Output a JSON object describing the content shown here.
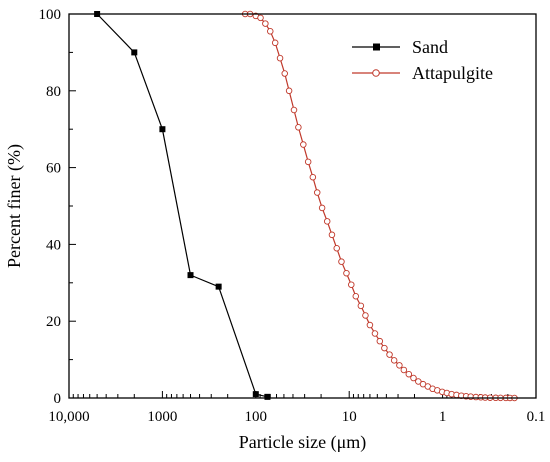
{
  "chart_data": {
    "type": "line",
    "xlabel": "Particle size (μm)",
    "ylabel": "Percent finer (%)",
    "x_scale": "log",
    "x_reversed": true,
    "xlim": [
      10000,
      0.1
    ],
    "ylim": [
      0,
      100
    ],
    "x_ticks": [
      {
        "value": 10000,
        "label": "10,000"
      },
      {
        "value": 1000,
        "label": "1000"
      },
      {
        "value": 100,
        "label": "100"
      },
      {
        "value": 10,
        "label": "10"
      },
      {
        "value": 1,
        "label": "1"
      },
      {
        "value": 0.1,
        "label": "0.1"
      }
    ],
    "y_ticks": [
      0,
      20,
      40,
      60,
      80,
      100
    ],
    "grid": false,
    "legend_position": "top-right",
    "series": [
      {
        "name": "Sand",
        "color": "#000000",
        "marker": "filled-square",
        "x": [
          5000,
          2000,
          1000,
          500,
          250,
          100,
          75
        ],
        "y": [
          100,
          90,
          70,
          32,
          29,
          1,
          0.3
        ]
      },
      {
        "name": "Attapulgite",
        "color": "#c0392b",
        "marker": "open-circle",
        "x": [
          130,
          115,
          100,
          89,
          79,
          70,
          62,
          55,
          49,
          44,
          39,
          35,
          31,
          27.5,
          24.5,
          22,
          19.5,
          17.2,
          15.3,
          13.6,
          12.1,
          10.7,
          9.5,
          8.5,
          7.5,
          6.7,
          6,
          5.3,
          4.7,
          4.2,
          3.7,
          3.3,
          2.9,
          2.6,
          2.3,
          2.05,
          1.82,
          1.62,
          1.44,
          1.28,
          1.14,
          1.01,
          0.9,
          0.8,
          0.71,
          0.63,
          0.56,
          0.5,
          0.44,
          0.39,
          0.35,
          0.31,
          0.27,
          0.24,
          0.21,
          0.19,
          0.17
        ],
        "y": [
          100,
          100,
          99.5,
          99,
          97.5,
          95.5,
          92.5,
          88.5,
          84.5,
          80,
          75,
          70.5,
          66,
          61.5,
          57.5,
          53.5,
          49.5,
          46,
          42.5,
          39,
          35.5,
          32.5,
          29.5,
          26.5,
          24,
          21.5,
          19,
          16.8,
          14.8,
          13,
          11.3,
          9.8,
          8.5,
          7.3,
          6.2,
          5.2,
          4.3,
          3.6,
          3,
          2.4,
          2,
          1.6,
          1.3,
          1,
          0.8,
          0.6,
          0.45,
          0.35,
          0.25,
          0.18,
          0.12,
          0.08,
          0.05,
          0.03,
          0.02,
          0.01,
          0
        ]
      }
    ]
  }
}
